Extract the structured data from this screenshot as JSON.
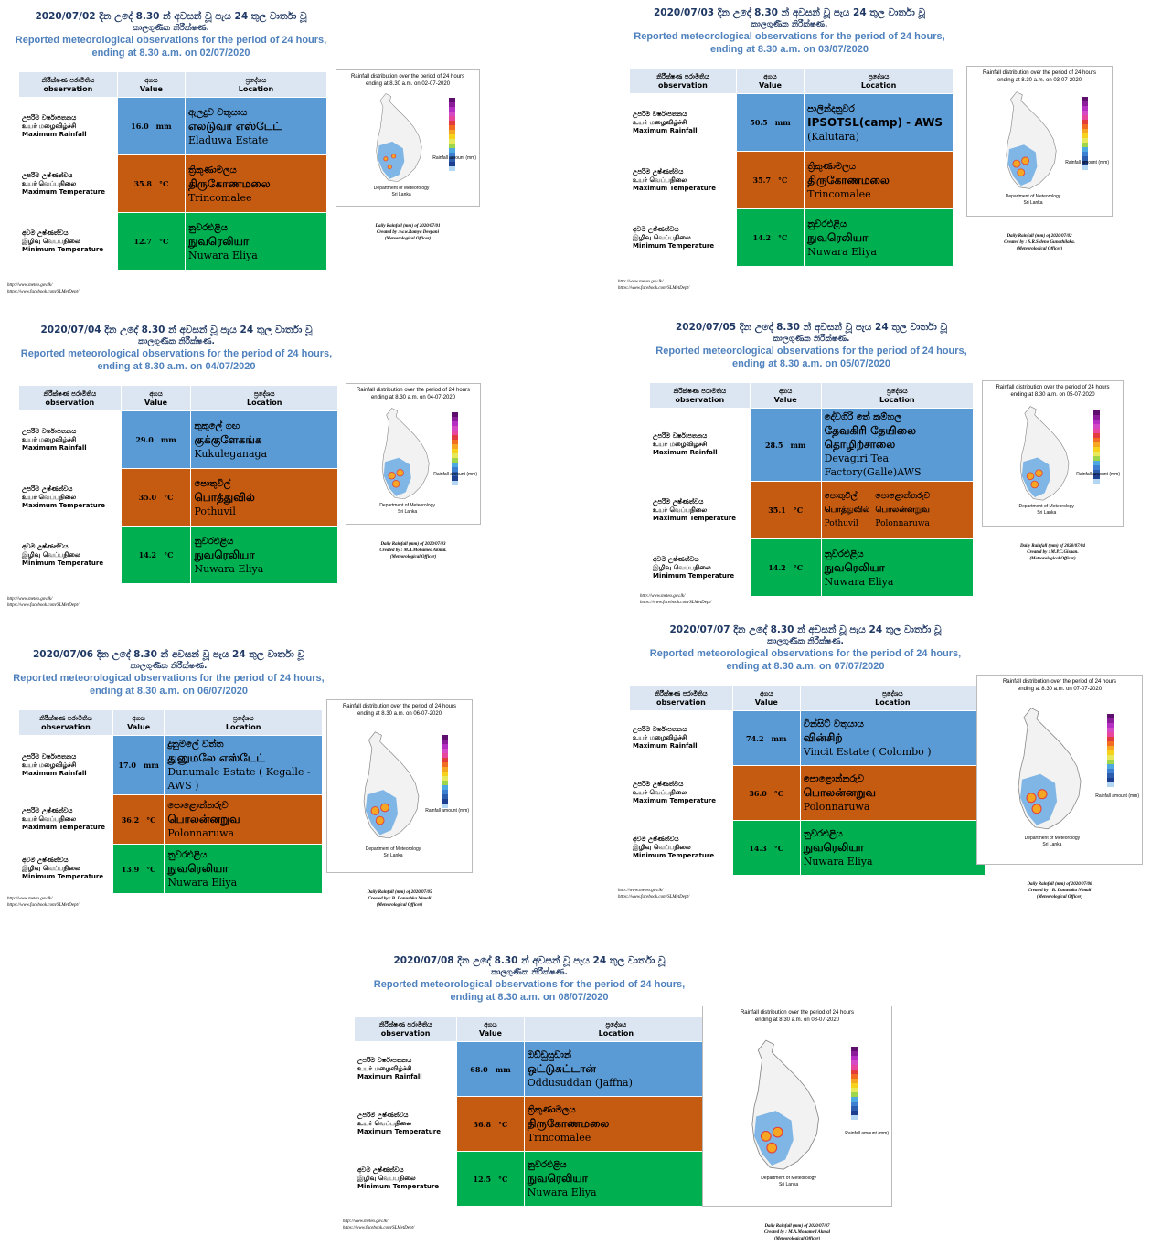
{
  "common": {
    "hdr_si_suffix": "දින උදේ 8.30 න් අවසන් වූ පැය 24 තුල වාර්තා වූ",
    "hdr_si_line2": "කාලගුණික නිරීක්ෂණ.",
    "hdr_en_line1": "Reported meteorological observations for the period of 24 hours,",
    "hdr_en_line2_prefix": "ending at 8.30 a.m. on",
    "col_obs_si": "නිරීක්ෂණ පරාමිතිය",
    "col_obs_en": "observation",
    "col_val_si": "අගය",
    "col_val_en": "Value",
    "col_loc_si": "ප්‍රදේශය",
    "col_loc_en": "Location",
    "max_rain_si": "උපරිම වර්ෂාපතනය",
    "max_rain_ta": "உயர் மழைவிழ்ச்சி",
    "max_rain_en": "Maximum Rainfall",
    "max_temp_si": "උපරිම උෂ්ණත්වය",
    "max_temp_ta": "உயர் வெப்பநிலை",
    "max_temp_en": "Maximum Temperature",
    "min_temp_si": "අවම උෂ්ණත්වය",
    "min_temp_ta": "இழிவு வெப்பநிலை",
    "min_temp_en": "Minimum Temperature",
    "unit_mm": "mm",
    "unit_c": "°C",
    "map_title_line1": "Rainfall distribution over the period of 24 hours",
    "map_dept_line1": "Department of Meteorology",
    "map_dept_line2": "Sri Lanka",
    "map_rainfall_amount": "Rainfall amount (mm)",
    "link_web": "http://www.meteo.gov.lk/",
    "link_fb": "https://www.facebook.com/SLMetDept/",
    "officer": "(Meteorological Officer)"
  },
  "panels": [
    {
      "date": "2020/07/02",
      "date_dmy": "02/07/2020",
      "map_date": "02-07-2020",
      "rain": "16.0",
      "rain_loc": [
        "ඇලදුව වතුයාය",
        "எலடுவா எஸ்டேட்",
        "Eladuwa Estate"
      ],
      "tmax": "35.8",
      "tmax_loc": [
        "ත්‍රිකුණාමලය",
        "திருகோணமலை",
        "Trincomalee"
      ],
      "tmin": "12.7",
      "tmin_loc": [
        "නුවරඑළිය",
        "நுவரெலியா",
        "Nuwara Eliya"
      ],
      "credit_1": "Daily Rainfall (mm) of 2020/07/01",
      "credit_2": "Created by : w.w.Ramya Deepani"
    },
    {
      "date": "2020/07/03",
      "date_dmy": "03/07/2020",
      "map_date": "03-07-2020",
      "rain": "50.5",
      "rain_loc": [
        "පාලින්දනුවර",
        "IPSOTSL(camp) - AWS",
        "(Kalutara)"
      ],
      "tmax": "35.7",
      "tmax_loc": [
        "ත්‍රිකුණාමලය",
        "திருகோணமலை",
        "Trincomalee"
      ],
      "tmin": "14.2",
      "tmin_loc": [
        "නුවරඑළිය",
        "நுவரெலியா",
        "Nuwara Eliya"
      ],
      "credit_1": "Daily Rainfall (mm) of 2020/07/02",
      "credit_2": "Created by : S.R.Sideno Gunathilaka."
    },
    {
      "date": "2020/07/04",
      "date_dmy": "04/07/2020",
      "map_date": "04-07-2020",
      "rain": "29.0",
      "rain_loc": [
        "කුකුලේ ගඟ",
        "குக்குளேகங்க",
        "Kukuleganaga"
      ],
      "tmax": "35.0",
      "tmax_loc": [
        "පොතුවිල්",
        "பொத்துவில்",
        "Pothuvil"
      ],
      "tmin": "14.2",
      "tmin_loc": [
        "නුවරඑළිය",
        "நுவரெலியா",
        "Nuwara Eliya"
      ],
      "credit_1": "Daily Rainfall (mm) of 2020/07/03",
      "credit_2": "Created by : M.A.Mohamed Akmal."
    },
    {
      "date": "2020/07/05",
      "date_dmy": "05/07/2020",
      "map_date": "05-07-2020",
      "rain": "28.5",
      "rain_loc": [
        "දේවගිරි තේ කම්හල",
        "தேவகிரி தேயிலை தொழிற்சாலை",
        "Devagiri Tea Factory(Galle)AWS"
      ],
      "tmax": "35.1",
      "tmax_loc": [
        "පොතුවිල්",
        "பொத்துவில்",
        "Pothuvil"
      ],
      "tmax_loc2": [
        "පොළොන්නරුව",
        "பொலன்னறுவ",
        "Polonnaruwa"
      ],
      "tmin": "14.2",
      "tmin_loc": [
        "නුවරඑළිය",
        "நுவரெலியா",
        "Nuwara Eliya"
      ],
      "credit_1": "Daily Rainfall (mm) of 2020/07/04",
      "credit_2": "Created by : M.P.C.Gishan."
    },
    {
      "date": "2020/07/06",
      "date_dmy": "06/07/2020",
      "map_date": "06-07-2020",
      "rain": "17.0",
      "rain_loc": [
        "දුනුමලේ වත්ත",
        "துனுமலே எஸ்டேட்",
        "Dunumale Estate ( Kegalle - AWS )"
      ],
      "tmax": "36.2",
      "tmax_loc": [
        "පොළොන්නරුව",
        "பொலன்னறுவ",
        "Polonnaruwa"
      ],
      "tmin": "13.9",
      "tmin_loc": [
        "නුවරඑළිය",
        "நுவரெலியா",
        "Nuwara Eliya"
      ],
      "credit_1": "Daily Rainfall (mm) of 2020/07/05",
      "credit_2": "Created by : B. Danushka Nimali"
    },
    {
      "date": "2020/07/07",
      "date_dmy": "07/07/2020",
      "map_date": "07-07-2020",
      "rain": "74.2",
      "rain_loc": [
        "වින්සිට් වතුයාය",
        "வின்சிற்",
        "Vincit Estate ( Colombo )"
      ],
      "tmax": "36.0",
      "tmax_loc": [
        "පොළොන්නරුව",
        "பொலன்னறுவ",
        "Polonnaruwa"
      ],
      "tmin": "14.3",
      "tmin_loc": [
        "නුවරඑළිය",
        "நுவரெலியா",
        "Nuwara Eliya"
      ],
      "credit_1": "Daily Rainfall (mm) of 2020/07/06",
      "credit_2": "Created by : B. Danushka Nimali"
    },
    {
      "date": "2020/07/08",
      "date_dmy": "08/07/2020",
      "map_date": "08-07-2020",
      "rain": "68.0",
      "rain_loc": [
        "ඔඩ්ඩුසුඩාන්",
        "ஒட்டுசுட்டான்",
        "Oddusuddan (Jaffna)"
      ],
      "tmax": "36.8",
      "tmax_loc": [
        "ත්‍රිකුණාමලය",
        "திருகோணமலை",
        "Trincomalee"
      ],
      "tmin": "12.5",
      "tmin_loc": [
        "නුවරඑළිය",
        "நுவரெலியா",
        "Nuwara Eliya"
      ],
      "credit_1": "Daily Rainfall (mm) of 2020/07/07",
      "credit_2": "Created by : M.A.Mohamed Akmal"
    }
  ],
  "colors": {
    "rain_row": "#5b9bd5",
    "tmax_row": "#c55a11",
    "tmin_row": "#00b050",
    "header_cell": "#dce6f2",
    "title_dark": "#1f3864",
    "title_blue": "#4f81bd"
  }
}
